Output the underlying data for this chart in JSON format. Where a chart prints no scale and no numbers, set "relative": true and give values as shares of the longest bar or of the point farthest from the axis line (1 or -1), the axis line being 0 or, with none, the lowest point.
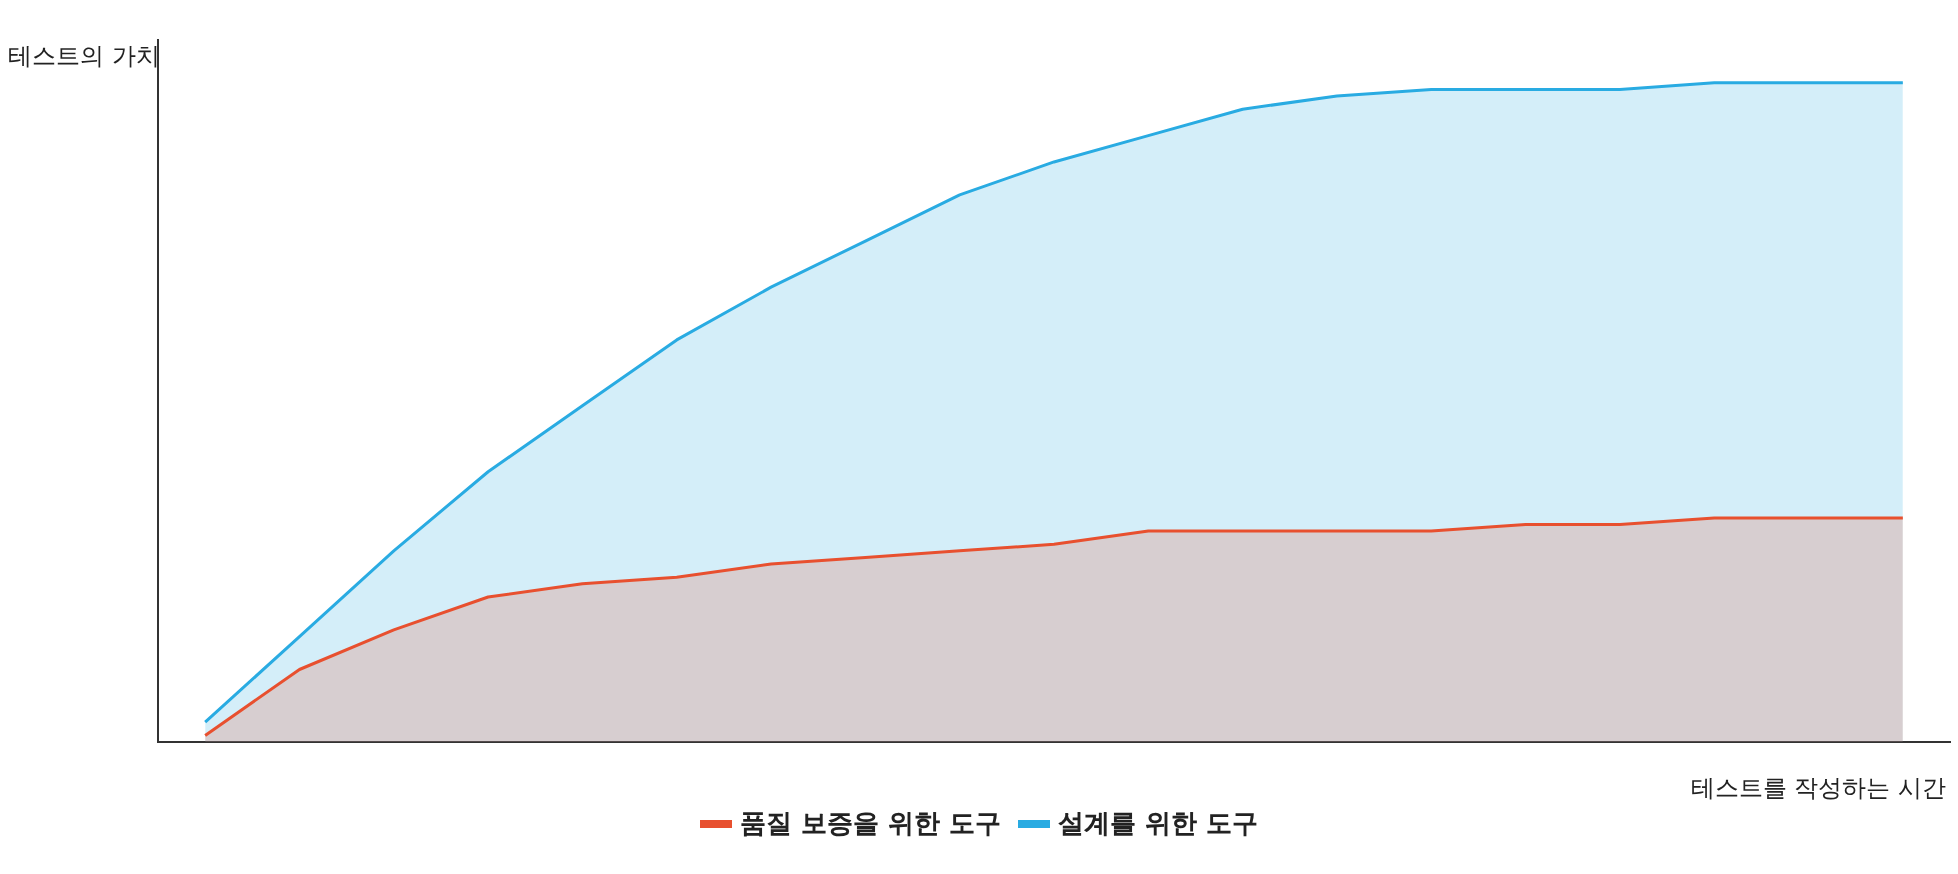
{
  "chart_data": {
    "type": "area",
    "relative": true,
    "xlabel": "테스트를 작성하는 시간",
    "ylabel": "테스트의 가치",
    "legend": "bottom",
    "grid": false,
    "marker": "none",
    "categories": [
      null,
      null,
      null,
      null,
      null,
      null,
      null,
      null,
      null,
      null,
      null,
      null,
      null,
      null,
      null,
      null,
      null,
      null,
      null
    ],
    "series": [
      {
        "name": "품질 보증을 위한 도구",
        "color": "#e8502f",
        "values": [
          0.01,
          0.11,
          0.17,
          0.22,
          0.24,
          0.25,
          0.27,
          0.28,
          0.29,
          0.3,
          0.32,
          0.32,
          0.32,
          0.32,
          0.33,
          0.33,
          0.34,
          0.34,
          0.34
        ]
      },
      {
        "name": "설계를 위한 도구",
        "color": "#29abe2",
        "values": [
          0.03,
          0.16,
          0.29,
          0.41,
          0.51,
          0.61,
          0.69,
          0.76,
          0.83,
          0.88,
          0.92,
          0.96,
          0.98,
          0.99,
          0.99,
          0.99,
          1,
          1,
          1
        ]
      }
    ]
  }
}
